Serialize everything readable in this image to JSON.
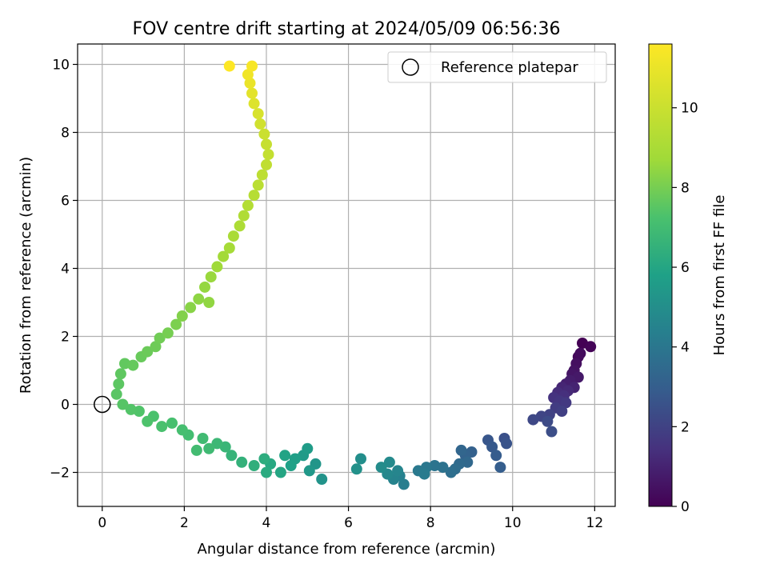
{
  "chart_data": {
    "type": "scatter",
    "title": "FOV centre drift starting at 2024/05/09 06:56:36",
    "xlabel": "Angular distance from reference (arcmin)",
    "ylabel": "Rotation from reference (arcmin)",
    "xlim": [
      -0.6,
      12.5
    ],
    "ylim": [
      -3.0,
      10.6
    ],
    "xticks": [
      0,
      2,
      4,
      6,
      8,
      10,
      12
    ],
    "yticks": [
      -2,
      0,
      2,
      4,
      6,
      8,
      10
    ],
    "xtick_labels": [
      "0",
      "2",
      "4",
      "6",
      "8",
      "10",
      "12"
    ],
    "ytick_labels": [
      "−2",
      "0",
      "2",
      "4",
      "6",
      "8",
      "10"
    ],
    "grid": true,
    "legend": {
      "placement": "top-right",
      "entries": [
        "Reference platepar"
      ]
    },
    "reference_point": {
      "x": 0,
      "y": 0,
      "label": "Reference platepar"
    },
    "colorbar": {
      "label": "Hours from first FF file",
      "colormap": "viridis",
      "range": [
        0,
        11.6
      ],
      "ticks": [
        0,
        2,
        4,
        6,
        8,
        10
      ],
      "tick_labels": [
        "0",
        "2",
        "4",
        "6",
        "8",
        "10"
      ]
    },
    "series": [
      {
        "columns": [
          "x",
          "y",
          "hours"
        ],
        "points": [
          [
            11.7,
            1.8,
            0.0
          ],
          [
            11.9,
            1.7,
            0.1
          ],
          [
            11.6,
            1.4,
            0.2
          ],
          [
            11.65,
            1.5,
            0.3
          ],
          [
            11.55,
            1.2,
            0.4
          ],
          [
            11.5,
            1.0,
            0.5
          ],
          [
            11.45,
            0.9,
            0.6
          ],
          [
            11.6,
            0.8,
            0.7
          ],
          [
            11.4,
            0.7,
            0.8
          ],
          [
            11.3,
            0.6,
            0.9
          ],
          [
            11.5,
            0.5,
            1.0
          ],
          [
            11.2,
            0.5,
            1.1
          ],
          [
            11.35,
            0.4,
            1.2
          ],
          [
            11.1,
            0.35,
            1.3
          ],
          [
            11.25,
            0.25,
            1.4
          ],
          [
            11.0,
            0.2,
            1.5
          ],
          [
            11.15,
            0.1,
            1.6
          ],
          [
            11.3,
            0.05,
            1.7
          ],
          [
            11.05,
            -0.1,
            1.8
          ],
          [
            11.2,
            -0.2,
            1.9
          ],
          [
            10.9,
            -0.3,
            2.0
          ],
          [
            10.7,
            -0.35,
            2.1
          ],
          [
            10.5,
            -0.45,
            2.2
          ],
          [
            10.85,
            -0.5,
            2.3
          ],
          [
            10.95,
            -0.8,
            2.4
          ],
          [
            9.8,
            -1.0,
            2.5
          ],
          [
            9.85,
            -1.15,
            2.6
          ],
          [
            9.4,
            -1.05,
            2.7
          ],
          [
            9.5,
            -1.25,
            2.8
          ],
          [
            9.6,
            -1.5,
            2.9
          ],
          [
            9.7,
            -1.85,
            3.0
          ],
          [
            9.0,
            -1.4,
            3.1
          ],
          [
            8.85,
            -1.5,
            3.2
          ],
          [
            8.75,
            -1.35,
            3.3
          ],
          [
            8.9,
            -1.7,
            3.4
          ],
          [
            8.7,
            -1.75,
            3.5
          ],
          [
            8.6,
            -1.9,
            3.6
          ],
          [
            8.5,
            -2.0,
            3.7
          ],
          [
            8.3,
            -1.85,
            3.8
          ],
          [
            8.1,
            -1.8,
            3.9
          ],
          [
            7.9,
            -1.85,
            4.0
          ],
          [
            7.7,
            -1.95,
            4.1
          ],
          [
            7.85,
            -2.05,
            4.2
          ],
          [
            7.35,
            -2.35,
            4.3
          ],
          [
            7.25,
            -2.1,
            4.4
          ],
          [
            7.1,
            -2.2,
            4.5
          ],
          [
            7.2,
            -1.95,
            4.6
          ],
          [
            6.95,
            -2.05,
            4.7
          ],
          [
            7.0,
            -1.7,
            4.8
          ],
          [
            6.8,
            -1.85,
            4.9
          ],
          [
            6.3,
            -1.6,
            5.0
          ],
          [
            6.2,
            -1.9,
            5.1
          ],
          [
            5.35,
            -2.2,
            5.2
          ],
          [
            5.2,
            -1.75,
            5.3
          ],
          [
            5.05,
            -1.95,
            5.4
          ],
          [
            4.9,
            -1.5,
            5.5
          ],
          [
            5.0,
            -1.3,
            5.6
          ],
          [
            4.7,
            -1.6,
            5.7
          ],
          [
            4.6,
            -1.8,
            5.8
          ],
          [
            4.45,
            -1.5,
            5.9
          ],
          [
            4.35,
            -2.0,
            6.0
          ],
          [
            4.1,
            -1.75,
            6.1
          ],
          [
            4.0,
            -2.0,
            6.2
          ],
          [
            3.95,
            -1.6,
            6.3
          ],
          [
            3.7,
            -1.8,
            6.4
          ],
          [
            3.4,
            -1.7,
            6.5
          ],
          [
            3.15,
            -1.5,
            6.6
          ],
          [
            3.0,
            -1.25,
            6.7
          ],
          [
            2.8,
            -1.15,
            6.8
          ],
          [
            2.6,
            -1.3,
            6.9
          ],
          [
            2.45,
            -1.0,
            6.95
          ],
          [
            2.3,
            -1.35,
            7.0
          ],
          [
            2.1,
            -0.9,
            7.05
          ],
          [
            1.95,
            -0.75,
            7.1
          ],
          [
            1.7,
            -0.55,
            7.15
          ],
          [
            1.45,
            -0.65,
            7.2
          ],
          [
            1.25,
            -0.35,
            7.25
          ],
          [
            1.1,
            -0.5,
            7.3
          ],
          [
            0.9,
            -0.2,
            7.35
          ],
          [
            0.7,
            -0.15,
            7.4
          ],
          [
            0.5,
            0.0,
            7.45
          ],
          [
            0.35,
            0.3,
            7.5
          ],
          [
            0.4,
            0.6,
            7.55
          ],
          [
            0.45,
            0.9,
            7.6
          ],
          [
            0.55,
            1.2,
            7.65
          ],
          [
            0.75,
            1.15,
            7.7
          ],
          [
            0.95,
            1.4,
            7.75
          ],
          [
            1.1,
            1.55,
            7.8
          ],
          [
            1.3,
            1.7,
            7.85
          ],
          [
            1.4,
            1.95,
            7.9
          ],
          [
            1.6,
            2.1,
            8.0
          ],
          [
            1.8,
            2.35,
            8.1
          ],
          [
            1.95,
            2.6,
            8.2
          ],
          [
            2.15,
            2.85,
            8.3
          ],
          [
            2.35,
            3.1,
            8.4
          ],
          [
            2.6,
            3.0,
            8.45
          ],
          [
            2.5,
            3.45,
            8.5
          ],
          [
            2.65,
            3.75,
            8.6
          ],
          [
            2.8,
            4.05,
            8.7
          ],
          [
            2.95,
            4.35,
            8.8
          ],
          [
            3.1,
            4.6,
            8.9
          ],
          [
            3.2,
            4.95,
            9.0
          ],
          [
            3.35,
            5.25,
            9.1
          ],
          [
            3.45,
            5.55,
            9.2
          ],
          [
            3.55,
            5.85,
            9.3
          ],
          [
            3.7,
            6.15,
            9.4
          ],
          [
            3.8,
            6.45,
            9.5
          ],
          [
            3.9,
            6.75,
            9.6
          ],
          [
            4.0,
            7.05,
            9.7
          ],
          [
            4.05,
            7.35,
            9.8
          ],
          [
            4.0,
            7.65,
            9.9
          ],
          [
            3.95,
            7.95,
            10.0
          ],
          [
            3.85,
            8.25,
            10.2
          ],
          [
            3.8,
            8.55,
            10.4
          ],
          [
            3.7,
            8.85,
            10.6
          ],
          [
            3.65,
            9.15,
            10.8
          ],
          [
            3.6,
            9.45,
            11.0
          ],
          [
            3.55,
            9.7,
            11.2
          ],
          [
            3.65,
            9.95,
            11.4
          ],
          [
            3.1,
            9.95,
            11.6
          ]
        ]
      }
    ]
  }
}
